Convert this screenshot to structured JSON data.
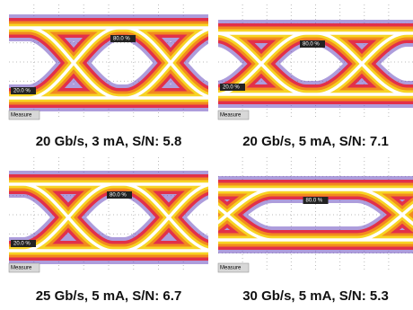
{
  "panels": [
    {
      "caption": "20 Gb/s, 3 mA, S/N: 5.8",
      "upper_marker": "80.0 %",
      "lower_marker": "20.0 %",
      "button": "Measure"
    },
    {
      "caption": "20 Gb/s, 5 mA, S/N: 7.1",
      "upper_marker": "80.0 %",
      "lower_marker": "20.0 %",
      "button": "Measure"
    },
    {
      "caption": "25 Gb/s, 5 mA, S/N: 6.7",
      "upper_marker": "80.0 %",
      "lower_marker": "20.0 %",
      "button": "Measure"
    },
    {
      "caption": "30 Gb/s, 5 mA, S/N: 5.3",
      "upper_marker": "80.0 %",
      "button": "Measure"
    }
  ]
}
